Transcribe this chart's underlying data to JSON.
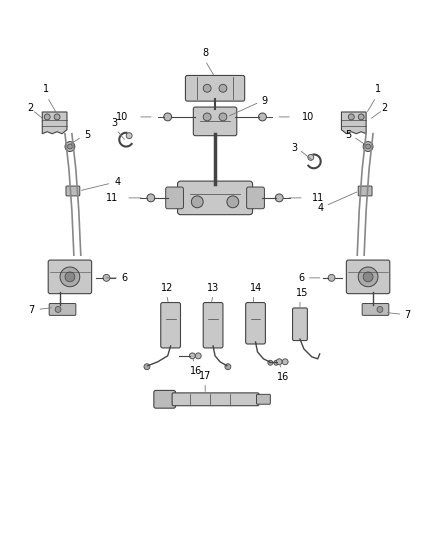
{
  "background_color": "#ffffff",
  "fig_width": 4.38,
  "fig_height": 5.33,
  "dpi": 100,
  "line_color": "#555555",
  "text_color": "#000000",
  "label_fontsize": 7.0,
  "part_color": "#c8c8c8",
  "part_edge": "#444444",
  "leader_color": "#777777"
}
